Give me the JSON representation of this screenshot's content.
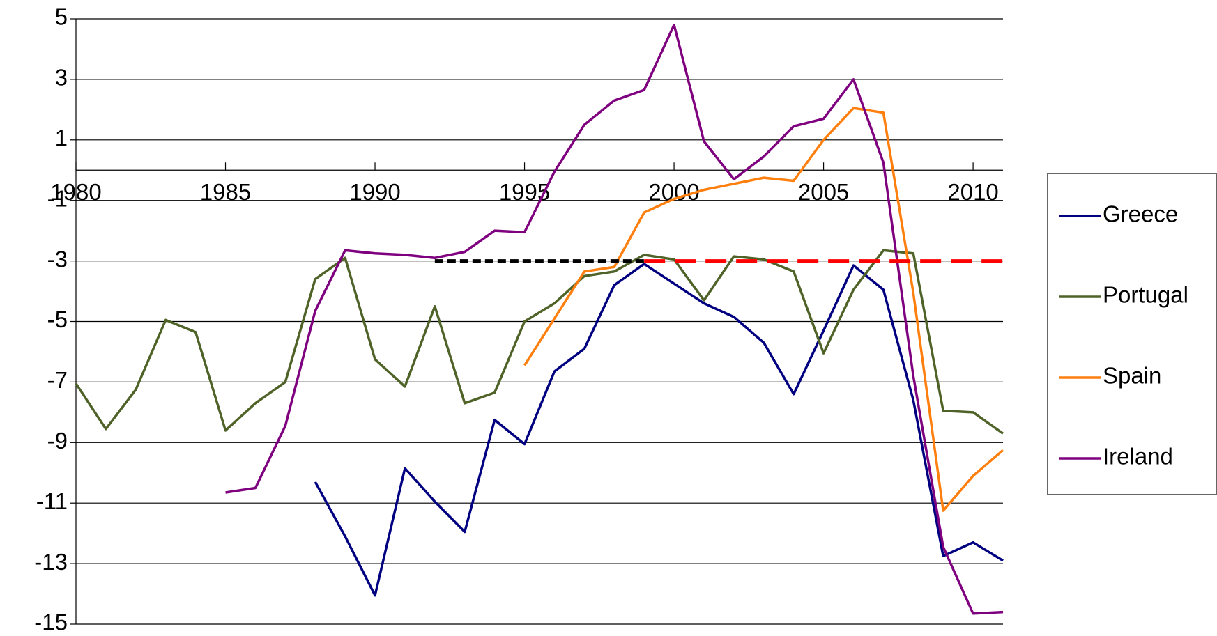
{
  "chart_data": {
    "type": "line",
    "x": [
      1980,
      1981,
      1982,
      1983,
      1984,
      1985,
      1986,
      1987,
      1988,
      1989,
      1990,
      1991,
      1992,
      1993,
      1994,
      1995,
      1996,
      1997,
      1998,
      1999,
      2000,
      2001,
      2002,
      2003,
      2004,
      2005,
      2006,
      2007,
      2008,
      2009,
      2010,
      2011
    ],
    "xlim": [
      1980,
      2011
    ],
    "xticks": [
      1980,
      1985,
      1990,
      1995,
      2000,
      2005,
      2010
    ],
    "ylim": [
      -15,
      5
    ],
    "yticks": [
      -15,
      -13,
      -11,
      -9,
      -7,
      -5,
      -3,
      -1,
      1,
      3,
      5
    ],
    "grid": true,
    "legend": "right",
    "series": [
      {
        "name": "Greece",
        "color": "#000080",
        "values": [
          null,
          null,
          null,
          null,
          null,
          null,
          null,
          null,
          -10.3,
          -12.1,
          -14.05,
          -9.85,
          -10.95,
          -11.95,
          -8.25,
          -9.05,
          -6.65,
          -5.9,
          -3.8,
          -3.1,
          -3.75,
          -4.4,
          -4.85,
          -5.7,
          -7.4,
          -5.3,
          -3.15,
          -3.95,
          -7.6,
          -12.75,
          -12.3,
          -12.9
        ]
      },
      {
        "name": "Portugal",
        "color": "#4f6228",
        "values": [
          -7.05,
          -8.55,
          -7.25,
          -4.95,
          -5.35,
          -8.6,
          -7.7,
          -7.0,
          -3.6,
          -2.9,
          -6.25,
          -7.15,
          -4.5,
          -7.7,
          -7.35,
          -5.0,
          -4.4,
          -3.5,
          -3.35,
          -2.8,
          -2.95,
          -4.3,
          -2.85,
          -2.95,
          -3.35,
          -6.05,
          -3.95,
          -2.65,
          -2.75,
          -7.95,
          -8.0,
          -8.7
        ]
      },
      {
        "name": "Spain",
        "color": "#ff7f0e",
        "values": [
          null,
          null,
          null,
          null,
          null,
          null,
          null,
          null,
          null,
          null,
          null,
          null,
          null,
          null,
          null,
          -6.45,
          -4.9,
          -3.35,
          -3.2,
          -1.4,
          -0.95,
          -0.65,
          -0.45,
          -0.25,
          -0.35,
          1.0,
          2.05,
          1.9,
          -4.05,
          -11.25,
          -10.1,
          -9.25
        ]
      },
      {
        "name": "Ireland",
        "color": "#7f007f",
        "values": [
          null,
          null,
          null,
          null,
          null,
          -10.65,
          -10.5,
          -8.45,
          -4.65,
          -2.65,
          -2.75,
          -2.8,
          -2.9,
          -2.7,
          -2.0,
          -2.05,
          -0.05,
          1.5,
          2.3,
          2.65,
          4.8,
          0.95,
          -0.3,
          0.45,
          1.45,
          1.7,
          3.0,
          0.25,
          -6.8,
          -12.45,
          -14.65,
          -14.6
        ]
      }
    ],
    "reference_lines": [
      {
        "x": [
          1992,
          1999
        ],
        "y": -3,
        "color": "#000000"
      },
      {
        "x": [
          1999,
          2011
        ],
        "y": -3,
        "color": "#ff0000"
      }
    ]
  }
}
